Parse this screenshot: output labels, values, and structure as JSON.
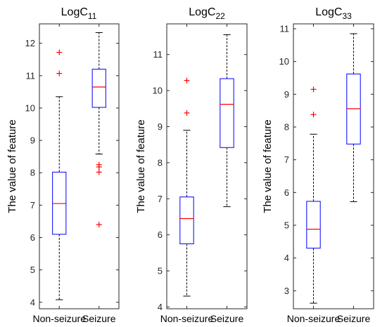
{
  "chart_data": [
    {
      "type": "box",
      "title": {
        "main": "LogC",
        "sub": "11"
      },
      "ylabel": "The value of feature",
      "categories": [
        "Non-seizure",
        "Seizure"
      ],
      "ylim": [
        3.8,
        12.6
      ],
      "yticks": [
        4,
        5,
        6,
        7,
        8,
        9,
        10,
        11,
        12
      ],
      "boxes": [
        {
          "category": "Non-seizure",
          "whisker_low": 4.08,
          "q1": 6.1,
          "median": 7.05,
          "q3": 8.02,
          "whisker_high": 10.35,
          "outliers": [
            11.07,
            11.72
          ]
        },
        {
          "category": "Seizure",
          "whisker_low": 8.58,
          "q1": 10.02,
          "median": 10.65,
          "q3": 11.2,
          "whisker_high": 12.33,
          "outliers": [
            8.25,
            8.18,
            8.02,
            6.4
          ]
        }
      ]
    },
    {
      "type": "box",
      "title": {
        "main": "LogC",
        "sub": "22"
      },
      "ylabel": "The value of feature",
      "categories": [
        "Non-seizure",
        "Seizure"
      ],
      "ylim": [
        3.95,
        11.85
      ],
      "yticks": [
        4,
        5,
        6,
        7,
        8,
        9,
        10,
        11
      ],
      "boxes": [
        {
          "category": "Non-seizure",
          "whisker_low": 4.3,
          "q1": 5.75,
          "median": 6.45,
          "q3": 7.05,
          "whisker_high": 8.9,
          "outliers": [
            9.38,
            10.28
          ]
        },
        {
          "category": "Seizure",
          "whisker_low": 6.78,
          "q1": 8.42,
          "median": 9.62,
          "q3": 10.33,
          "whisker_high": 11.55,
          "outliers": []
        }
      ]
    },
    {
      "type": "box",
      "title": {
        "main": "LogC",
        "sub": "33"
      },
      "ylabel": "The value of feature",
      "categories": [
        "Non-seizure",
        "Seizure"
      ],
      "ylim": [
        2.45,
        11.15
      ],
      "yticks": [
        3,
        4,
        5,
        6,
        7,
        8,
        9,
        10,
        11
      ],
      "boxes": [
        {
          "category": "Non-seizure",
          "whisker_low": 2.62,
          "q1": 4.3,
          "median": 4.88,
          "q3": 5.73,
          "whisker_high": 7.78,
          "outliers": [
            8.38,
            9.15
          ]
        },
        {
          "category": "Seizure",
          "whisker_low": 5.72,
          "q1": 7.48,
          "median": 8.56,
          "q3": 9.62,
          "whisker_high": 10.85,
          "outliers": []
        }
      ]
    }
  ],
  "colors": {
    "box": "#0000ff",
    "median": "#ff0000",
    "outlier": "#ff0000",
    "whisker": "#000000"
  }
}
